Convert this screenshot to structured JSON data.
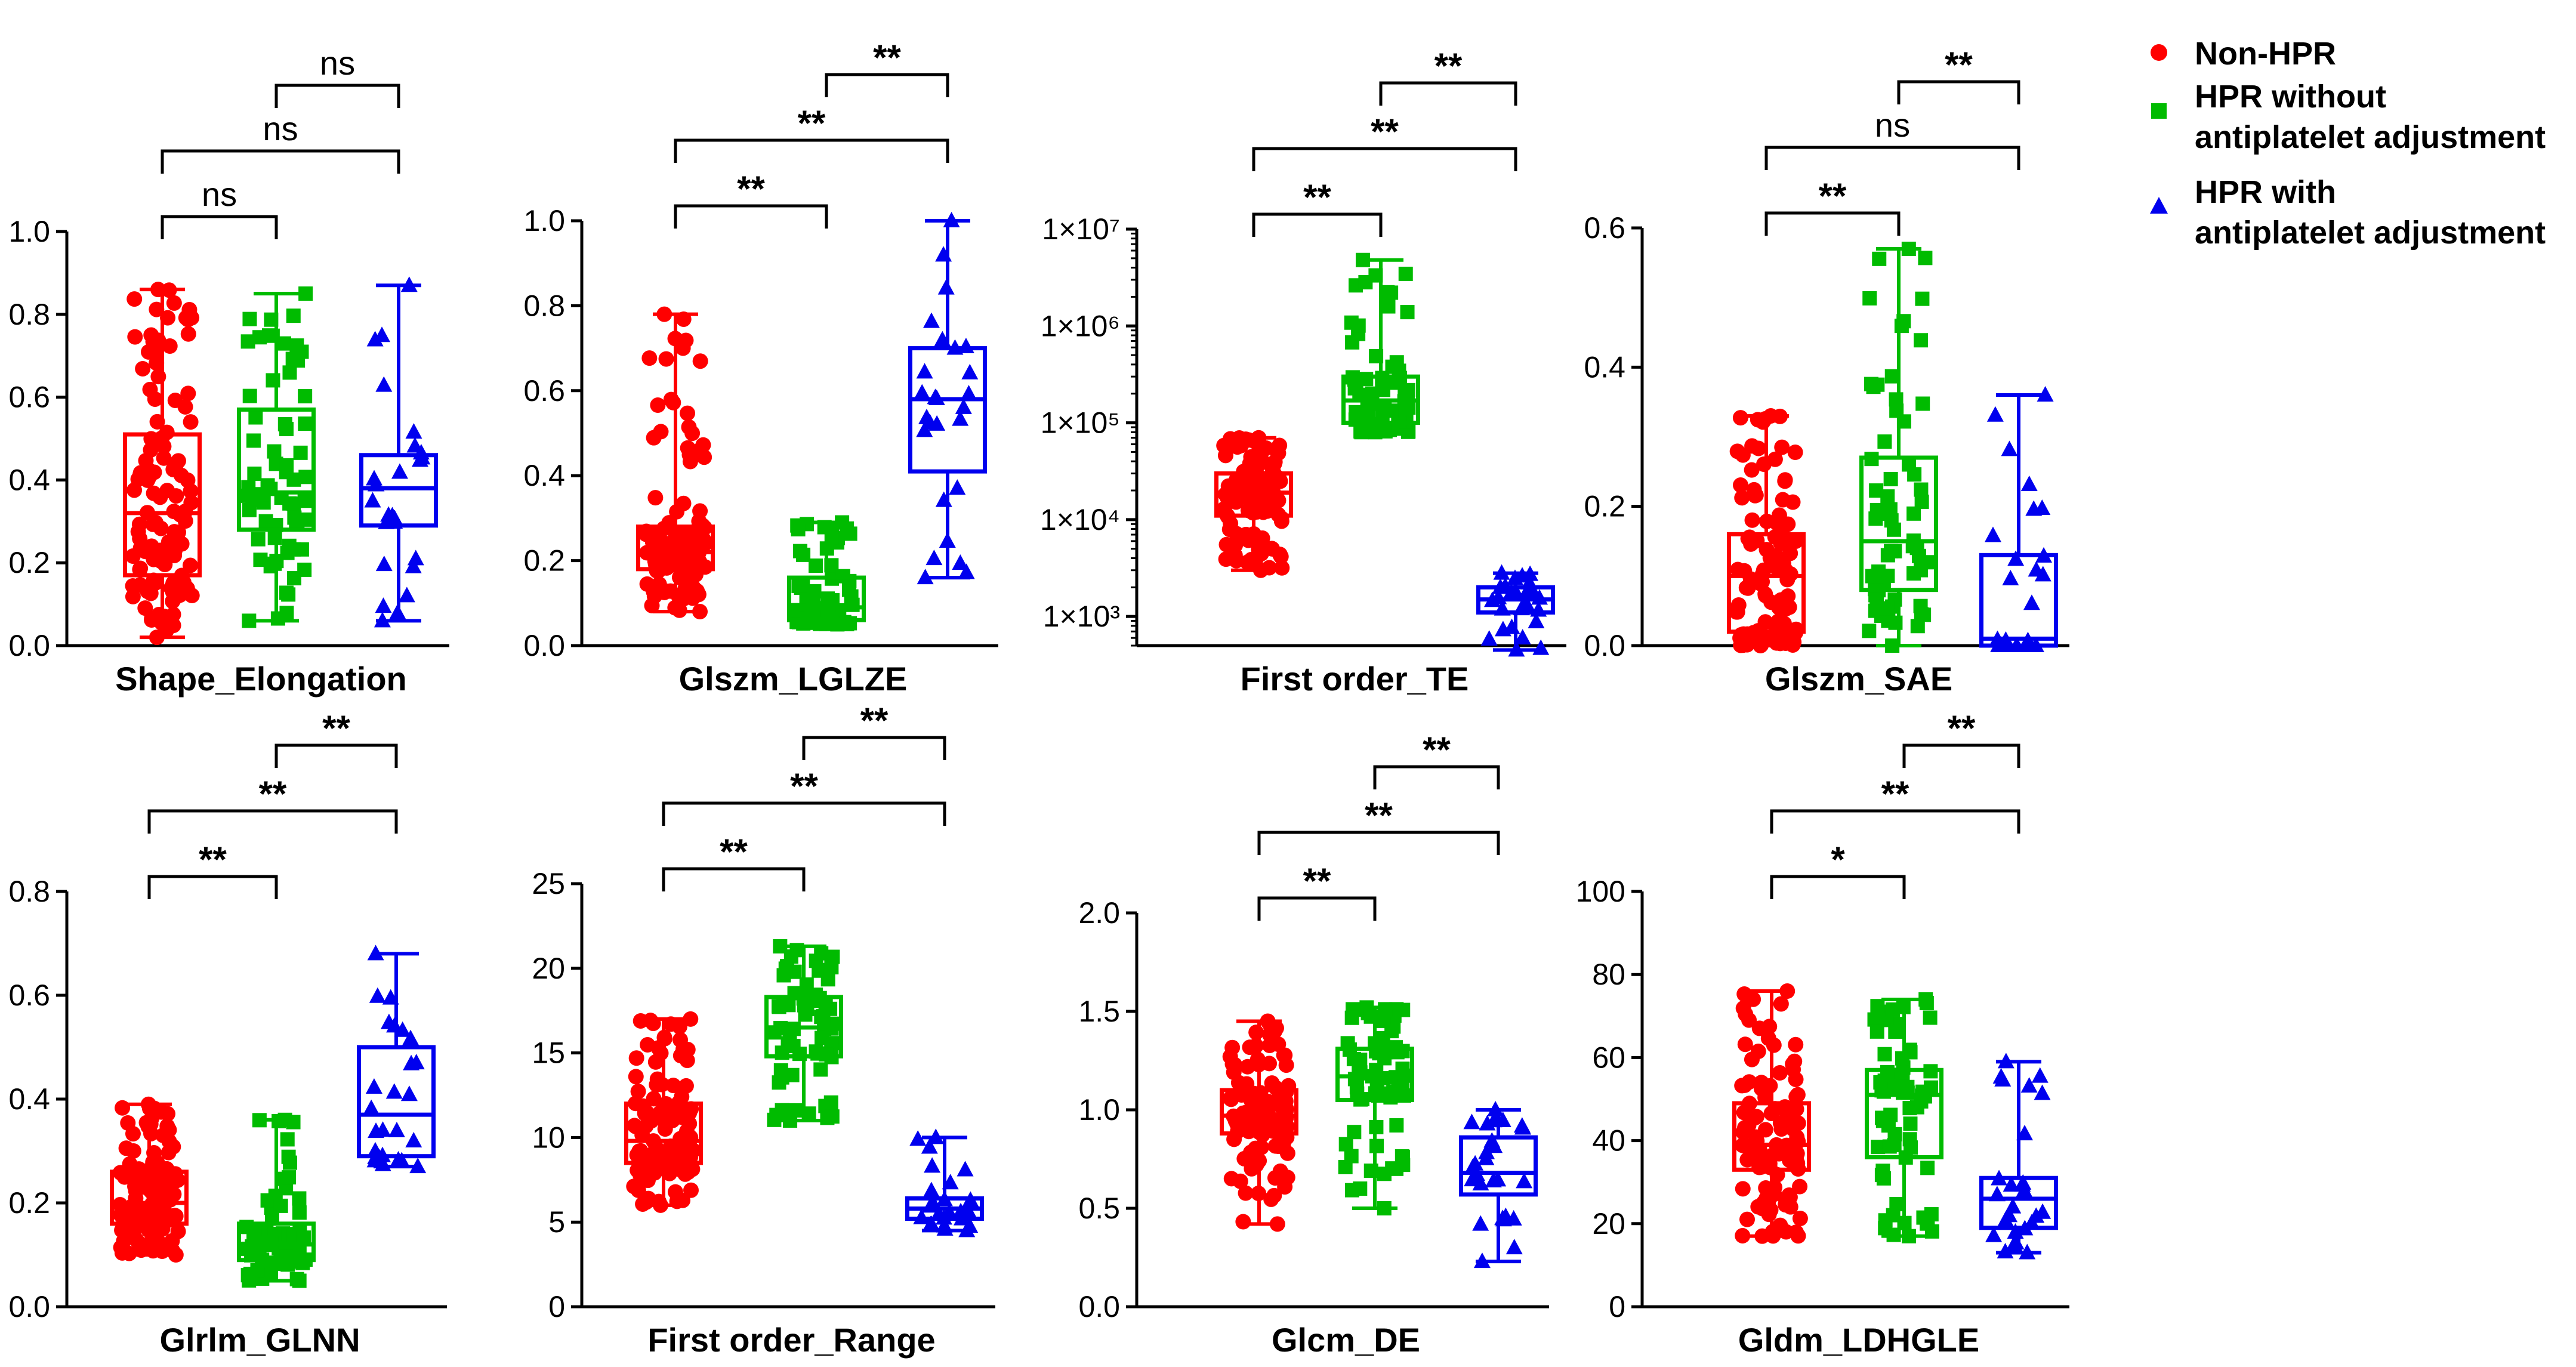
{
  "chart_data": [
    {
      "type": "box_scatter",
      "title": "Shape_Elongation",
      "scale": "linear",
      "ylim": [
        0,
        1.0
      ],
      "yticks": [
        0.0,
        0.2,
        0.4,
        0.6,
        0.8,
        1.0
      ],
      "ytick_labels": [
        "0.0",
        "0.2",
        "0.4",
        "0.6",
        "0.8",
        "1.0"
      ],
      "groups": [
        {
          "group": "Non-HPR",
          "min": 0.02,
          "q1": 0.17,
          "median": 0.32,
          "q3": 0.51,
          "max": 0.86,
          "n": 110
        },
        {
          "group": "HPR without antiplatelet adjustment",
          "min": 0.06,
          "q1": 0.28,
          "median": 0.37,
          "q3": 0.57,
          "max": 0.85,
          "n": 65
        },
        {
          "group": "HPR with antiplatelet adjustment",
          "min": 0.06,
          "q1": 0.29,
          "median": 0.38,
          "q3": 0.46,
          "max": 0.87,
          "n": 22
        }
      ],
      "comparisons": [
        {
          "groups": [
            1,
            2
          ],
          "label": "ns"
        },
        {
          "groups": [
            0,
            2
          ],
          "label": "ns"
        },
        {
          "groups": [
            0,
            1
          ],
          "label": "ns"
        }
      ]
    },
    {
      "type": "box_scatter",
      "title": "Glszm_LGLZE",
      "scale": "linear",
      "ylim": [
        0,
        1.0
      ],
      "yticks": [
        0.0,
        0.2,
        0.4,
        0.6,
        0.8,
        1.0
      ],
      "ytick_labels": [
        "0.0",
        "0.2",
        "0.4",
        "0.6",
        "0.8",
        "1.0"
      ],
      "groups": [
        {
          "group": "Non-HPR",
          "min": 0.08,
          "q1": 0.18,
          "median": 0.22,
          "q3": 0.28,
          "max": 0.78,
          "n": 110
        },
        {
          "group": "HPR without antiplatelet adjustment",
          "min": 0.05,
          "q1": 0.06,
          "median": 0.09,
          "q3": 0.16,
          "max": 0.29,
          "n": 65
        },
        {
          "group": "HPR with antiplatelet adjustment",
          "min": 0.16,
          "q1": 0.41,
          "median": 0.58,
          "q3": 0.7,
          "max": 1.0,
          "n": 22
        }
      ],
      "comparisons": [
        {
          "groups": [
            1,
            2
          ],
          "label": "**"
        },
        {
          "groups": [
            0,
            2
          ],
          "label": "**"
        },
        {
          "groups": [
            0,
            1
          ],
          "label": "**"
        }
      ]
    },
    {
      "type": "box_scatter",
      "title": "First order_TE",
      "scale": "log",
      "ylim": [
        500,
        10000000
      ],
      "yticks": [
        1000,
        10000,
        100000,
        1000000,
        10000000
      ],
      "ytick_labels": [
        "1×10³",
        "1×10⁴",
        "1×10⁵",
        "1×10⁶",
        "1×10⁷"
      ],
      "groups": [
        {
          "group": "Non-HPR",
          "min": 3000,
          "q1": 11000,
          "median": 19000,
          "q3": 30000,
          "max": 70000,
          "n": 110
        },
        {
          "group": "HPR without antiplatelet adjustment",
          "min": 80000,
          "q1": 100000,
          "median": 170000,
          "q3": 300000,
          "max": 4800000,
          "n": 65
        },
        {
          "group": "HPR with antiplatelet adjustment",
          "min": 450,
          "q1": 1100,
          "median": 1500,
          "q3": 2000,
          "max": 2800,
          "n": 22
        }
      ],
      "comparisons": [
        {
          "groups": [
            1,
            2
          ],
          "label": "**"
        },
        {
          "groups": [
            0,
            2
          ],
          "label": "**"
        },
        {
          "groups": [
            0,
            1
          ],
          "label": "**"
        }
      ]
    },
    {
      "type": "box_scatter",
      "title": "Glszm_SAE",
      "scale": "linear",
      "ylim": [
        0,
        0.6
      ],
      "yticks": [
        0.0,
        0.2,
        0.4,
        0.6
      ],
      "ytick_labels": [
        "0.0",
        "0.2",
        "0.4",
        "0.6"
      ],
      "groups": [
        {
          "group": "Non-HPR",
          "min": 0.0,
          "q1": 0.02,
          "median": 0.1,
          "q3": 0.16,
          "max": 0.33,
          "n": 110
        },
        {
          "group": "HPR without antiplatelet adjustment",
          "min": 0.0,
          "q1": 0.08,
          "median": 0.15,
          "q3": 0.27,
          "max": 0.57,
          "n": 65
        },
        {
          "group": "HPR with antiplatelet adjustment",
          "min": 0.0,
          "q1": 0.0,
          "median": 0.01,
          "q3": 0.13,
          "max": 0.36,
          "n": 22
        }
      ],
      "comparisons": [
        {
          "groups": [
            1,
            2
          ],
          "label": "**"
        },
        {
          "groups": [
            0,
            2
          ],
          "label": "ns"
        },
        {
          "groups": [
            0,
            1
          ],
          "label": "**"
        }
      ]
    },
    {
      "type": "box_scatter",
      "title": "Glrlm_GLNN",
      "scale": "linear",
      "ylim": [
        0,
        0.8
      ],
      "yticks": [
        0.0,
        0.2,
        0.4,
        0.6,
        0.8
      ],
      "ytick_labels": [
        "0.0",
        "0.2",
        "0.4",
        "0.6",
        "0.8"
      ],
      "groups": [
        {
          "group": "Non-HPR",
          "min": 0.1,
          "q1": 0.16,
          "median": 0.2,
          "q3": 0.26,
          "max": 0.39,
          "n": 110
        },
        {
          "group": "HPR without antiplatelet adjustment",
          "min": 0.05,
          "q1": 0.09,
          "median": 0.12,
          "q3": 0.16,
          "max": 0.36,
          "n": 65
        },
        {
          "group": "HPR with antiplatelet adjustment",
          "min": 0.27,
          "q1": 0.29,
          "median": 0.37,
          "q3": 0.5,
          "max": 0.68,
          "n": 22
        }
      ],
      "comparisons": [
        {
          "groups": [
            1,
            2
          ],
          "label": "**"
        },
        {
          "groups": [
            0,
            2
          ],
          "label": "**"
        },
        {
          "groups": [
            0,
            1
          ],
          "label": "**"
        }
      ]
    },
    {
      "type": "box_scatter",
      "title": "First order_Range",
      "scale": "linear",
      "ylim": [
        0,
        25
      ],
      "yticks": [
        0,
        5,
        10,
        15,
        20,
        25
      ],
      "ytick_labels": [
        "0",
        "5",
        "10",
        "15",
        "20",
        "25"
      ],
      "groups": [
        {
          "group": "Non-HPR",
          "min": 6.0,
          "q1": 8.5,
          "median": 9.8,
          "q3": 12.0,
          "max": 17.0,
          "n": 110
        },
        {
          "group": "HPR without antiplatelet adjustment",
          "min": 11.0,
          "q1": 14.8,
          "median": 16.5,
          "q3": 18.3,
          "max": 21.3,
          "n": 65
        },
        {
          "group": "HPR with antiplatelet adjustment",
          "min": 4.5,
          "q1": 5.2,
          "median": 5.8,
          "q3": 6.4,
          "max": 10.0,
          "n": 22
        }
      ],
      "comparisons": [
        {
          "groups": [
            1,
            2
          ],
          "label": "**"
        },
        {
          "groups": [
            0,
            2
          ],
          "label": "**"
        },
        {
          "groups": [
            0,
            1
          ],
          "label": "**"
        }
      ]
    },
    {
      "type": "box_scatter",
      "title": "Glcm_DE",
      "scale": "linear",
      "ylim": [
        0,
        2.0
      ],
      "yticks": [
        0.0,
        0.5,
        1.0,
        1.5,
        2.0
      ],
      "ytick_labels": [
        "0.0",
        "0.5",
        "1.0",
        "1.5",
        "2.0"
      ],
      "groups": [
        {
          "group": "Non-HPR",
          "min": 0.42,
          "q1": 0.88,
          "median": 0.97,
          "q3": 1.1,
          "max": 1.45,
          "n": 110
        },
        {
          "group": "HPR without antiplatelet adjustment",
          "min": 0.5,
          "q1": 1.05,
          "median": 1.17,
          "q3": 1.31,
          "max": 1.52,
          "n": 65
        },
        {
          "group": "HPR with antiplatelet adjustment",
          "min": 0.23,
          "q1": 0.57,
          "median": 0.68,
          "q3": 0.86,
          "max": 1.0,
          "n": 22
        }
      ],
      "comparisons": [
        {
          "groups": [
            1,
            2
          ],
          "label": "**"
        },
        {
          "groups": [
            0,
            2
          ],
          "label": "**"
        },
        {
          "groups": [
            0,
            1
          ],
          "label": "**"
        }
      ]
    },
    {
      "type": "box_scatter",
      "title": "Gldm_LDHGLE",
      "scale": "linear",
      "ylim": [
        0,
        100
      ],
      "yticks": [
        0,
        20,
        40,
        60,
        80,
        100
      ],
      "ytick_labels": [
        "0",
        "20",
        "40",
        "60",
        "80",
        "100"
      ],
      "groups": [
        {
          "group": "Non-HPR",
          "min": 17,
          "q1": 33,
          "median": 39,
          "q3": 49,
          "max": 76,
          "n": 110
        },
        {
          "group": "HPR without antiplatelet adjustment",
          "min": 17,
          "q1": 36,
          "median": 51,
          "q3": 57,
          "max": 74,
          "n": 65
        },
        {
          "group": "HPR with antiplatelet adjustment",
          "min": 13,
          "q1": 19,
          "median": 26,
          "q3": 31,
          "max": 59,
          "n": 22
        }
      ],
      "comparisons": [
        {
          "groups": [
            1,
            2
          ],
          "label": "**"
        },
        {
          "groups": [
            0,
            2
          ],
          "label": "**"
        },
        {
          "groups": [
            0,
            1
          ],
          "label": "*"
        }
      ]
    }
  ],
  "legend": {
    "entries": [
      {
        "label_lines": [
          "Non-HPR"
        ],
        "color": "#ff0000",
        "marker": "circle"
      },
      {
        "label_lines": [
          "HPR without",
          "antiplatelet adjustment"
        ],
        "color": "#00bb00",
        "marker": "square"
      },
      {
        "label_lines": [
          "HPR with",
          "antiplatelet adjustment"
        ],
        "color": "#0000ee",
        "marker": "triangle"
      }
    ]
  },
  "colors": {
    "group_0": "#ff0000",
    "group_1": "#00bb00",
    "group_2": "#0000ee",
    "axis": "#000000"
  }
}
